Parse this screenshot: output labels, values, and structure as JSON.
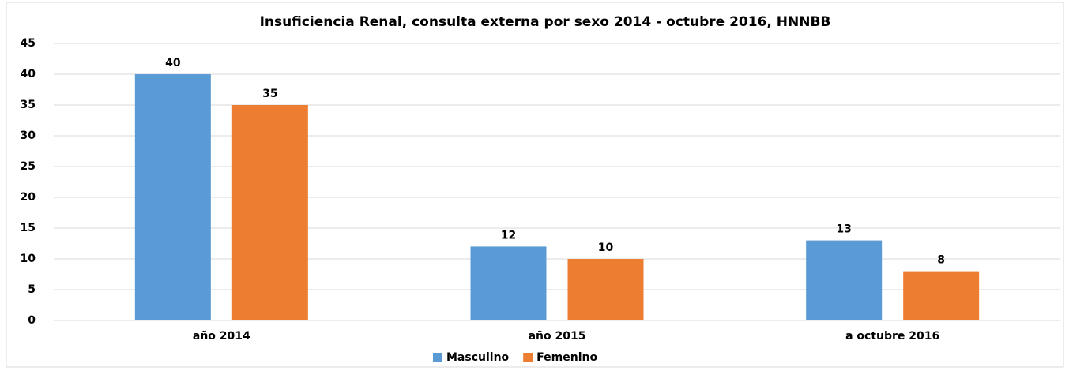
{
  "chart_data": {
    "type": "bar",
    "title": "Insuficiencia Renal, consulta externa por sexo 2014 - octubre 2016, HNNBB",
    "categories": [
      "año 2014",
      "año 2015",
      "a octubre 2016"
    ],
    "series": [
      {
        "name": "Masculino",
        "color": "#5b9bd5",
        "values": [
          40,
          12,
          13
        ]
      },
      {
        "name": "Femenino",
        "color": "#ed7d31",
        "values": [
          35,
          10,
          8
        ]
      }
    ],
    "ylim": [
      0,
      45
    ],
    "yticks": [
      0,
      5,
      10,
      15,
      20,
      25,
      30,
      35,
      40,
      45
    ],
    "grid": true,
    "legend": "bottom"
  }
}
